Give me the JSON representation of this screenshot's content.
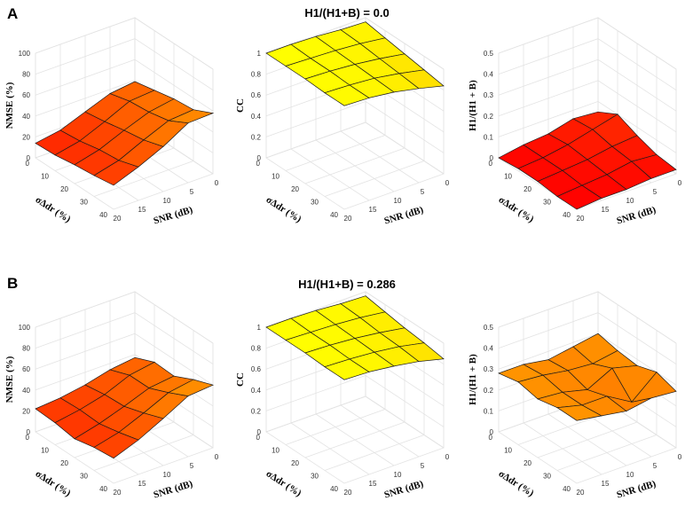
{
  "figure": {
    "rows": [
      {
        "letter": "A",
        "title": "H1/(H1+B) = 0.0"
      },
      {
        "letter": "B",
        "title": "H1/(H1+B) = 0.286"
      }
    ]
  },
  "chart_data": [
    {
      "type": "surface3d",
      "panel": "A",
      "position": "left",
      "zlabel": "NMSE (%)",
      "xlabel": "SNR (dB)",
      "ylabel": "σΔdr (%)",
      "x": [
        0,
        5,
        10,
        15,
        20
      ],
      "y": [
        0,
        10,
        20,
        30,
        40
      ],
      "zlim": [
        0,
        100
      ],
      "zticks": [
        0,
        20,
        40,
        60,
        80,
        100
      ],
      "xticks": [
        0,
        5,
        10,
        15,
        20
      ],
      "yticks": [
        0,
        10,
        20,
        30,
        40
      ],
      "z": [
        [
          39,
          36,
          27,
          18,
          14
        ],
        [
          43,
          41,
          30,
          20,
          15
        ],
        [
          47,
          43,
          34,
          24,
          18
        ],
        [
          49,
          47,
          37,
          26,
          20
        ],
        [
          58,
          57,
          43,
          32,
          23
        ]
      ],
      "colormap": "autumn"
    },
    {
      "type": "surface3d",
      "panel": "A",
      "position": "middle",
      "zlabel": "CC",
      "xlabel": "SNR (dB)",
      "ylabel": "σΔdr (%)",
      "x": [
        0,
        5,
        10,
        15,
        20
      ],
      "y": [
        0,
        10,
        20,
        30,
        40
      ],
      "zlim": [
        0,
        1
      ],
      "zticks": [
        0,
        0.2,
        0.4,
        0.6,
        0.8,
        1
      ],
      "xticks": [
        0,
        5,
        10,
        15,
        20
      ],
      "yticks": [
        0,
        10,
        20,
        30,
        40
      ],
      "z": [
        [
          0.96,
          0.97,
          0.99,
          1.0,
          1.0
        ],
        [
          0.93,
          0.96,
          0.98,
          0.99,
          1.0
        ],
        [
          0.9,
          0.94,
          0.97,
          0.99,
          1.0
        ],
        [
          0.87,
          0.92,
          0.96,
          0.98,
          0.99
        ],
        [
          0.84,
          0.9,
          0.95,
          0.98,
          0.99
        ]
      ],
      "colormap": "autumn"
    },
    {
      "type": "surface3d",
      "panel": "A",
      "position": "right",
      "zlabel": "H1/(H1 + B)",
      "xlabel": "SNR (dB)",
      "ylabel": "σΔdr (%)",
      "x": [
        0,
        5,
        10,
        15,
        20
      ],
      "y": [
        0,
        10,
        20,
        30,
        40
      ],
      "zlim": [
        0,
        0.5
      ],
      "zticks": [
        0,
        0.1,
        0.2,
        0.3,
        0.4,
        0.5
      ],
      "xticks": [
        0,
        5,
        10,
        15,
        20
      ],
      "yticks": [
        0,
        10,
        20,
        30,
        40
      ],
      "z": [
        [
          0.05,
          0.06,
          0.03,
          0.02,
          0.0
        ],
        [
          0.1,
          0.07,
          0.04,
          0.02,
          0.01
        ],
        [
          0.06,
          0.05,
          0.03,
          0.02,
          0.01
        ],
        [
          0.03,
          0.04,
          0.02,
          0.01,
          0.0
        ],
        [
          0.02,
          0.02,
          0.01,
          0.01,
          0.0
        ]
      ],
      "colormap": "autumn"
    },
    {
      "type": "surface3d",
      "panel": "B",
      "position": "left",
      "zlabel": "NMSE (%)",
      "xlabel": "SNR (dB)",
      "ylabel": "σΔdr (%)",
      "x": [
        0,
        5,
        10,
        15,
        20
      ],
      "y": [
        0,
        10,
        20,
        30,
        40
      ],
      "zlim": [
        0,
        100
      ],
      "zticks": [
        0,
        20,
        40,
        60,
        80,
        100
      ],
      "xticks": [
        0,
        5,
        10,
        15,
        20
      ],
      "yticks": [
        0,
        10,
        20,
        30,
        40
      ],
      "z": [
        [
          37,
          34,
          28,
          24,
          22
        ],
        [
          45,
          41,
          31,
          25,
          21
        ],
        [
          44,
          41,
          32,
          24,
          18
        ],
        [
          53,
          49,
          38,
          28,
          22
        ],
        [
          60,
          58,
          45,
          33,
          24
        ]
      ],
      "colormap": "autumn"
    },
    {
      "type": "surface3d",
      "panel": "B",
      "position": "middle",
      "zlabel": "CC",
      "xlabel": "SNR (dB)",
      "ylabel": "σΔdr (%)",
      "x": [
        0,
        5,
        10,
        15,
        20
      ],
      "y": [
        0,
        10,
        20,
        30,
        40
      ],
      "zlim": [
        0,
        1
      ],
      "zticks": [
        0,
        0.2,
        0.4,
        0.6,
        0.8,
        1
      ],
      "xticks": [
        0,
        5,
        10,
        15,
        20
      ],
      "yticks": [
        0,
        10,
        20,
        30,
        40
      ],
      "z": [
        [
          0.96,
          0.97,
          0.99,
          1.0,
          1.0
        ],
        [
          0.93,
          0.96,
          0.98,
          0.99,
          1.0
        ],
        [
          0.9,
          0.94,
          0.97,
          0.99,
          1.0
        ],
        [
          0.88,
          0.93,
          0.96,
          0.98,
          0.99
        ],
        [
          0.85,
          0.91,
          0.95,
          0.98,
          0.99
        ]
      ],
      "colormap": "autumn"
    },
    {
      "type": "surface3d",
      "panel": "B",
      "position": "right",
      "zlabel": "H1/(H1 + B)",
      "xlabel": "SNR (dB)",
      "ylabel": "σΔdr (%)",
      "x": [
        0,
        5,
        10,
        15,
        20
      ],
      "y": [
        0,
        10,
        20,
        30,
        40
      ],
      "zlim": [
        0,
        0.5
      ],
      "zticks": [
        0,
        0.1,
        0.2,
        0.3,
        0.4,
        0.5
      ],
      "xticks": [
        0,
        5,
        10,
        15,
        20
      ],
      "yticks": [
        0,
        10,
        20,
        30,
        40
      ],
      "z": [
        [
          0.3,
          0.28,
          0.26,
          0.28,
          0.28
        ],
        [
          0.28,
          0.26,
          0.27,
          0.29,
          0.3
        ],
        [
          0.27,
          0.3,
          0.24,
          0.27,
          0.28
        ],
        [
          0.3,
          0.2,
          0.27,
          0.27,
          0.3
        ],
        [
          0.27,
          0.28,
          0.26,
          0.28,
          0.3
        ]
      ],
      "colormap": "autumn"
    }
  ]
}
